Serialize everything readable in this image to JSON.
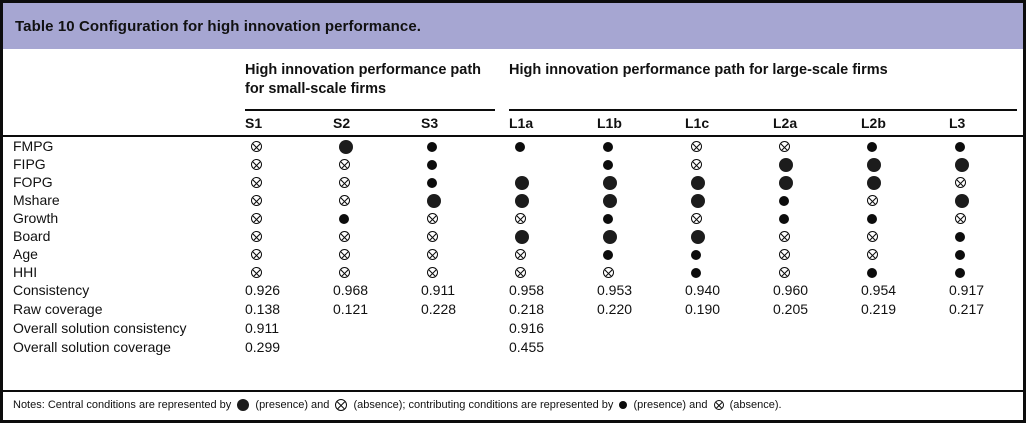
{
  "title": "Table 10 Configuration for high innovation performance.",
  "colors": {
    "title_bar": "#a6a6d2",
    "border": "#0c0c0c",
    "symbol": "#1c1c1c"
  },
  "table": {
    "group_headers": [
      {
        "label": "High innovation performance path for small-scale firms",
        "span": 3
      },
      {
        "label": "High innovation performance path for large-scale firms",
        "span": 6
      }
    ],
    "columns": [
      "S1",
      "S2",
      "S3",
      "L1a",
      "L1b",
      "L1c",
      "L2a",
      "L2b",
      "L3"
    ],
    "symbol_codes": {
      "lp": "large filled circle = central condition presence",
      "la": "large crossed circle = central condition absence",
      "sp": "small filled circle = contributing condition presence",
      "sa": "small crossed circle = contributing condition absence",
      "": "blank cell"
    },
    "condition_rows": [
      {
        "label": "FMPG",
        "cells": [
          "sa",
          "lp",
          "sp",
          "sp",
          "sp",
          "sa",
          "sa",
          "sp",
          "sp"
        ]
      },
      {
        "label": "FIPG",
        "cells": [
          "sa",
          "sa",
          "sp",
          "",
          "sp",
          "sa",
          "lp",
          "lp",
          "lp"
        ]
      },
      {
        "label": "FOPG",
        "cells": [
          "sa",
          "sa",
          "sp",
          "lp",
          "lp",
          "lp",
          "lp",
          "lp",
          "sa"
        ]
      },
      {
        "label": "Mshare",
        "cells": [
          "sa",
          "sa",
          "lp",
          "lp",
          "lp",
          "lp",
          "sp",
          "sa",
          "lp"
        ]
      },
      {
        "label": "Growth",
        "cells": [
          "sa",
          "sp",
          "sa",
          "sa",
          "sp",
          "sa",
          "sp",
          "sp",
          "sa"
        ]
      },
      {
        "label": "Board",
        "cells": [
          "sa",
          "sa",
          "sa",
          "lp",
          "lp",
          "lp",
          "sa",
          "sa",
          "sp"
        ]
      },
      {
        "label": "Age",
        "cells": [
          "sa",
          "sa",
          "sa",
          "sa",
          "sp",
          "sp",
          "sa",
          "sa",
          "sp"
        ]
      },
      {
        "label": "HHI",
        "cells": [
          "sa",
          "sa",
          "sa",
          "sa",
          "sa",
          "sp",
          "sa",
          "sp",
          "sp"
        ]
      }
    ],
    "stat_rows": [
      {
        "label": "Consistency",
        "values": [
          "0.926",
          "0.968",
          "0.911",
          "0.958",
          "0.953",
          "0.940",
          "0.960",
          "0.954",
          "0.917"
        ]
      },
      {
        "label": "Raw coverage",
        "values": [
          "0.138",
          "0.121",
          "0.228",
          "0.218",
          "0.220",
          "0.190",
          "0.205",
          "0.219",
          "0.217"
        ]
      },
      {
        "label": "Overall solution consistency",
        "values": [
          "0.911",
          "",
          "",
          "0.916",
          "",
          "",
          "",
          "",
          ""
        ]
      },
      {
        "label": "Overall solution coverage",
        "values": [
          "0.299",
          "",
          "",
          "0.455",
          "",
          "",
          "",
          "",
          ""
        ]
      }
    ],
    "notes_segments": [
      {
        "type": "text",
        "value": "Notes: Central conditions are represented by "
      },
      {
        "type": "symbol",
        "value": "lp"
      },
      {
        "type": "text",
        "value": " (presence) and "
      },
      {
        "type": "symbol",
        "value": "la"
      },
      {
        "type": "text",
        "value": " (absence); contributing conditions are represented by "
      },
      {
        "type": "symbol",
        "value": "sp"
      },
      {
        "type": "text",
        "value": " (presence) and "
      },
      {
        "type": "symbol",
        "value": "sa"
      },
      {
        "type": "text",
        "value": " (absence)."
      }
    ]
  }
}
